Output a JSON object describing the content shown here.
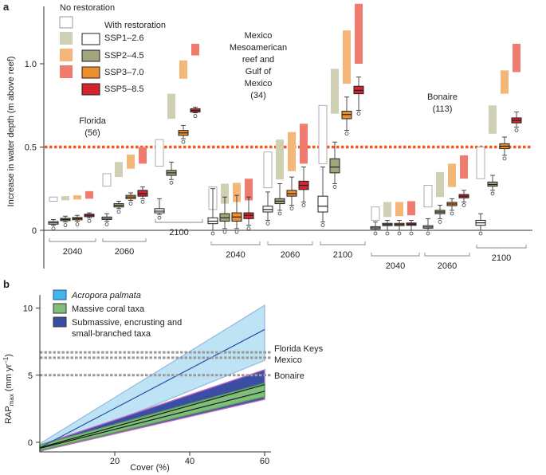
{
  "colors": {
    "restoration": {
      "SSP1-2.6": "#ffffff",
      "SSP2-4.5": "#a3a57a",
      "SSP3-7.0": "#ee8f2e",
      "SSP5-8.5": "#d4242e"
    },
    "no_restoration": {
      "SSP1-2.6": "#ffffff",
      "SSP2-4.5": "#cfcfb3",
      "SSP3-7.0": "#f5b779",
      "SSP5-8.5": "#f07c70"
    },
    "threshold": "#ee5a24",
    "acropora_fill": "#bde3f5",
    "acropora_line": "#2b4fa3",
    "massive_fill": "#7fbf7b",
    "massive_line": "#1a1a1a",
    "submassive_fill": "#3a4ea5",
    "submassive_line": "#c066c0"
  },
  "chart_data": [
    {
      "type": "boxplot",
      "panel": "a",
      "ylabel": "Increase in water depth (m above reef)",
      "ylim": [
        -0.25,
        1.35
      ],
      "yticks": [
        "0",
        "0.5",
        "1.0"
      ],
      "threshold": 0.5,
      "legend": {
        "no_restoration_title": "No restoration",
        "with_restoration_title": "With restoration",
        "scenarios": [
          "SSP1–2.6",
          "SSP2–4.5",
          "SSP3–7.0",
          "SSP5–8.5"
        ]
      },
      "periods": [
        "2040",
        "2060",
        "2100"
      ],
      "sites": [
        {
          "name": "Florida",
          "n": "(56)",
          "groups": [
            {
              "period": "2040",
              "scenarios": [
                {
                  "scenario": "SSP1-2.6",
                  "no_restoration": [
                    0.175,
                    0.2
                  ],
                  "with_restoration": {
                    "min": 0.03,
                    "q1": 0.037,
                    "median": 0.045,
                    "q3": 0.053,
                    "max": 0.065
                  }
                },
                {
                  "scenario": "SSP2-4.5",
                  "no_restoration": [
                    0.18,
                    0.205
                  ],
                  "with_restoration": {
                    "min": 0.05,
                    "q1": 0.058,
                    "median": 0.065,
                    "q3": 0.072,
                    "max": 0.085
                  }
                },
                {
                  "scenario": "SSP3-7.0",
                  "no_restoration": [
                    0.185,
                    0.21
                  ],
                  "with_restoration": {
                    "min": 0.055,
                    "q1": 0.063,
                    "median": 0.07,
                    "q3": 0.077,
                    "max": 0.09
                  }
                },
                {
                  "scenario": "SSP5-8.5",
                  "no_restoration": [
                    0.19,
                    0.235
                  ],
                  "with_restoration": {
                    "min": 0.075,
                    "q1": 0.082,
                    "median": 0.09,
                    "q3": 0.097,
                    "max": 0.105
                  }
                }
              ]
            },
            {
              "period": "2060",
              "scenarios": [
                {
                  "scenario": "SSP1-2.6",
                  "no_restoration": [
                    0.265,
                    0.34
                  ],
                  "with_restoration": {
                    "min": 0.055,
                    "q1": 0.065,
                    "median": 0.072,
                    "q3": 0.08,
                    "max": 0.1
                  }
                },
                {
                  "scenario": "SSP2-4.5",
                  "no_restoration": [
                    0.32,
                    0.41
                  ],
                  "with_restoration": {
                    "min": 0.13,
                    "q1": 0.14,
                    "median": 0.15,
                    "q3": 0.16,
                    "max": 0.175
                  }
                },
                {
                  "scenario": "SSP3-7.0",
                  "no_restoration": [
                    0.37,
                    0.455
                  ],
                  "with_restoration": {
                    "min": 0.18,
                    "q1": 0.19,
                    "median": 0.2,
                    "q3": 0.21,
                    "max": 0.225
                  }
                },
                {
                  "scenario": "SSP5-8.5",
                  "no_restoration": [
                    0.4,
                    0.5
                  ],
                  "with_restoration": {
                    "min": 0.19,
                    "q1": 0.205,
                    "median": 0.22,
                    "q3": 0.24,
                    "max": 0.26
                  }
                }
              ]
            },
            {
              "period": "2100",
              "scenarios": [
                {
                  "scenario": "SSP1-2.6",
                  "no_restoration": [
                    0.385,
                    0.545
                  ],
                  "with_restoration": {
                    "min": 0.095,
                    "q1": 0.105,
                    "median": 0.115,
                    "q3": 0.13,
                    "max": 0.19
                  }
                },
                {
                  "scenario": "SSP2-4.5",
                  "no_restoration": [
                    0.67,
                    0.82
                  ],
                  "with_restoration": {
                    "min": 0.305,
                    "q1": 0.33,
                    "median": 0.345,
                    "q3": 0.36,
                    "max": 0.41
                  }
                },
                {
                  "scenario": "SSP3-7.0",
                  "no_restoration": [
                    0.91,
                    1.02
                  ],
                  "with_restoration": {
                    "min": 0.55,
                    "q1": 0.57,
                    "median": 0.585,
                    "q3": 0.6,
                    "max": 0.63
                  }
                },
                {
                  "scenario": "SSP5-8.5",
                  "no_restoration": [
                    1.05,
                    1.12
                  ],
                  "with_restoration": {
                    "min": 0.705,
                    "q1": 0.71,
                    "median": 0.72,
                    "q3": 0.73,
                    "max": 0.74
                  }
                }
              ]
            }
          ]
        },
        {
          "name": "Mexico Mesoamerican reef and Gulf of Mexico",
          "n": "(34)",
          "groups": [
            {
              "period": "2040",
              "scenarios": [
                {
                  "scenario": "SSP1-2.6",
                  "no_restoration": [
                    0.125,
                    0.26
                  ],
                  "with_restoration": {
                    "min": 0.0,
                    "q1": 0.04,
                    "median": 0.055,
                    "q3": 0.075,
                    "max": 0.25
                  }
                },
                {
                  "scenario": "SSP2-4.5",
                  "no_restoration": [
                    0.16,
                    0.28
                  ],
                  "with_restoration": {
                    "min": 0.01,
                    "q1": 0.055,
                    "median": 0.075,
                    "q3": 0.1,
                    "max": 0.2
                  }
                },
                {
                  "scenario": "SSP3-7.0",
                  "no_restoration": [
                    0.17,
                    0.285
                  ],
                  "with_restoration": {
                    "min": 0.01,
                    "q1": 0.055,
                    "median": 0.08,
                    "q3": 0.105,
                    "max": 0.21
                  }
                },
                {
                  "scenario": "SSP5-8.5",
                  "no_restoration": [
                    0.18,
                    0.31
                  ],
                  "with_restoration": {
                    "min": 0.03,
                    "q1": 0.07,
                    "median": 0.09,
                    "q3": 0.105,
                    "max": 0.2
                  }
                }
              ]
            },
            {
              "period": "2060",
              "scenarios": [
                {
                  "scenario": "SSP1-2.6",
                  "no_restoration": [
                    0.255,
                    0.47
                  ],
                  "with_restoration": {
                    "min": 0.06,
                    "q1": 0.11,
                    "median": 0.125,
                    "q3": 0.145,
                    "max": 0.23
                  }
                },
                {
                  "scenario": "SSP2-4.5",
                  "no_restoration": [
                    0.305,
                    0.545
                  ],
                  "with_restoration": {
                    "min": 0.12,
                    "q1": 0.16,
                    "median": 0.175,
                    "q3": 0.19,
                    "max": 0.28
                  }
                },
                {
                  "scenario": "SSP3-7.0",
                  "no_restoration": [
                    0.355,
                    0.59
                  ],
                  "with_restoration": {
                    "min": 0.15,
                    "q1": 0.205,
                    "median": 0.22,
                    "q3": 0.24,
                    "max": 0.32
                  }
                },
                {
                  "scenario": "SSP5-8.5",
                  "no_restoration": [
                    0.4,
                    0.64
                  ],
                  "with_restoration": {
                    "min": 0.17,
                    "q1": 0.245,
                    "median": 0.27,
                    "q3": 0.295,
                    "max": 0.38
                  }
                }
              ]
            },
            {
              "period": "2100",
              "scenarios": [
                {
                  "scenario": "SSP1-2.6",
                  "no_restoration": [
                    0.4,
                    0.75
                  ],
                  "with_restoration": {
                    "min": 0.05,
                    "q1": 0.11,
                    "median": 0.145,
                    "q3": 0.205,
                    "max": 0.38
                  }
                },
                {
                  "scenario": "SSP2-4.5",
                  "no_restoration": [
                    0.7,
                    0.97
                  ],
                  "with_restoration": {
                    "min": 0.28,
                    "q1": 0.345,
                    "median": 0.38,
                    "q3": 0.43,
                    "max": 0.53
                  }
                },
                {
                  "scenario": "SSP3-7.0",
                  "no_restoration": [
                    0.88,
                    1.2
                  ],
                  "with_restoration": {
                    "min": 0.6,
                    "q1": 0.67,
                    "median": 0.695,
                    "q3": 0.715,
                    "max": 0.8
                  }
                },
                {
                  "scenario": "SSP5-8.5",
                  "no_restoration": [
                    1.0,
                    1.36
                  ],
                  "with_restoration": {
                    "min": 0.72,
                    "q1": 0.82,
                    "median": 0.84,
                    "q3": 0.865,
                    "max": 0.92
                  }
                }
              ]
            }
          ]
        },
        {
          "name": "Bonaire",
          "n": "(113)",
          "groups": [
            {
              "period": "2040",
              "scenarios": [
                {
                  "scenario": "SSP1-2.6",
                  "no_restoration": [
                    0.06,
                    0.14
                  ],
                  "with_restoration": {
                    "min": 0.0,
                    "q1": 0.008,
                    "median": 0.015,
                    "q3": 0.022,
                    "max": 0.05
                  }
                },
                {
                  "scenario": "SSP2-4.5",
                  "no_restoration": [
                    0.08,
                    0.17
                  ],
                  "with_restoration": {
                    "min": 0.0,
                    "q1": 0.028,
                    "median": 0.035,
                    "q3": 0.042,
                    "max": 0.06
                  }
                },
                {
                  "scenario": "SSP3-7.0",
                  "no_restoration": [
                    0.085,
                    0.17
                  ],
                  "with_restoration": {
                    "min": 0.0,
                    "q1": 0.028,
                    "median": 0.035,
                    "q3": 0.042,
                    "max": 0.06
                  }
                },
                {
                  "scenario": "SSP5-8.5",
                  "no_restoration": [
                    0.09,
                    0.175
                  ],
                  "with_restoration": {
                    "min": 0.0,
                    "q1": 0.03,
                    "median": 0.037,
                    "q3": 0.044,
                    "max": 0.06
                  }
                }
              ]
            },
            {
              "period": "2060",
              "scenarios": [
                {
                  "scenario": "SSP1-2.6",
                  "no_restoration": [
                    0.14,
                    0.27
                  ],
                  "with_restoration": {
                    "min": 0.0,
                    "q1": 0.013,
                    "median": 0.02,
                    "q3": 0.028,
                    "max": 0.07
                  }
                },
                {
                  "scenario": "SSP2-4.5",
                  "no_restoration": [
                    0.2,
                    0.35
                  ],
                  "with_restoration": {
                    "min": 0.07,
                    "q1": 0.1,
                    "median": 0.11,
                    "q3": 0.12,
                    "max": 0.15
                  }
                },
                {
                  "scenario": "SSP3-7.0",
                  "no_restoration": [
                    0.26,
                    0.4
                  ],
                  "with_restoration": {
                    "min": 0.12,
                    "q1": 0.148,
                    "median": 0.158,
                    "q3": 0.168,
                    "max": 0.19
                  }
                },
                {
                  "scenario": "SSP5-8.5",
                  "no_restoration": [
                    0.31,
                    0.45
                  ],
                  "with_restoration": {
                    "min": 0.17,
                    "q1": 0.195,
                    "median": 0.205,
                    "q3": 0.215,
                    "max": 0.24
                  }
                }
              ]
            },
            {
              "period": "2100",
              "scenarios": [
                {
                  "scenario": "SSP1-2.6",
                  "no_restoration": [
                    0.31,
                    0.5
                  ],
                  "with_restoration": {
                    "min": 0.0,
                    "q1": 0.03,
                    "median": 0.045,
                    "q3": 0.06,
                    "max": 0.1
                  }
                },
                {
                  "scenario": "SSP2-4.5",
                  "no_restoration": [
                    0.58,
                    0.75
                  ],
                  "with_restoration": {
                    "min": 0.24,
                    "q1": 0.265,
                    "median": 0.275,
                    "q3": 0.29,
                    "max": 0.33
                  }
                },
                {
                  "scenario": "SSP3-7.0",
                  "no_restoration": [
                    0.82,
                    0.96
                  ],
                  "with_restoration": {
                    "min": 0.45,
                    "q1": 0.49,
                    "median": 0.505,
                    "q3": 0.52,
                    "max": 0.56
                  }
                },
                {
                  "scenario": "SSP5-8.5",
                  "no_restoration": [
                    0.95,
                    1.12
                  ],
                  "with_restoration": {
                    "min": 0.62,
                    "q1": 0.645,
                    "median": 0.66,
                    "q3": 0.675,
                    "max": 0.71
                  }
                }
              ]
            }
          ]
        }
      ]
    },
    {
      "type": "line",
      "panel": "b",
      "xlabel": "Cover (%)",
      "ylabel_main": "RAP",
      "ylabel_sub": "max",
      "ylabel_units": " (mm yr",
      "ylabel_sup": "−1",
      "ylabel_close": ")",
      "xlim": [
        0,
        60
      ],
      "ylim": [
        -0.8,
        10.5
      ],
      "xticks": [
        "20",
        "40",
        "60"
      ],
      "yticks": [
        "0",
        "5",
        "10"
      ],
      "series": [
        {
          "name": "Acropora palmata",
          "italic": true,
          "x": [
            0,
            60
          ],
          "y": [
            -0.4,
            8.4
          ],
          "lower": [
            -0.7,
            6.1
          ],
          "upper": [
            -0.1,
            10.2
          ]
        },
        {
          "name": "Massive coral taxa",
          "italic": false,
          "x": [
            0,
            60
          ],
          "y": [
            -0.45,
            3.8
          ],
          "lower": [
            -0.6,
            3.4
          ],
          "upper": [
            -0.2,
            4.4
          ]
        },
        {
          "name": "Submassive, encrusting and small-branched taxa",
          "label_line1": "Submassive, encrusting and",
          "label_line2": "small-branched taxa",
          "italic": false,
          "x": [
            0,
            60
          ],
          "y": [
            -0.4,
            4.3
          ],
          "lower": [
            -0.65,
            3.2
          ],
          "upper": [
            -0.2,
            5.4
          ]
        }
      ],
      "reference_lines": [
        {
          "label": "Florida Keys",
          "y": 6.7
        },
        {
          "label": "Mexico",
          "y": 6.3
        },
        {
          "label": "Bonaire",
          "y": 5.0
        }
      ]
    }
  ]
}
